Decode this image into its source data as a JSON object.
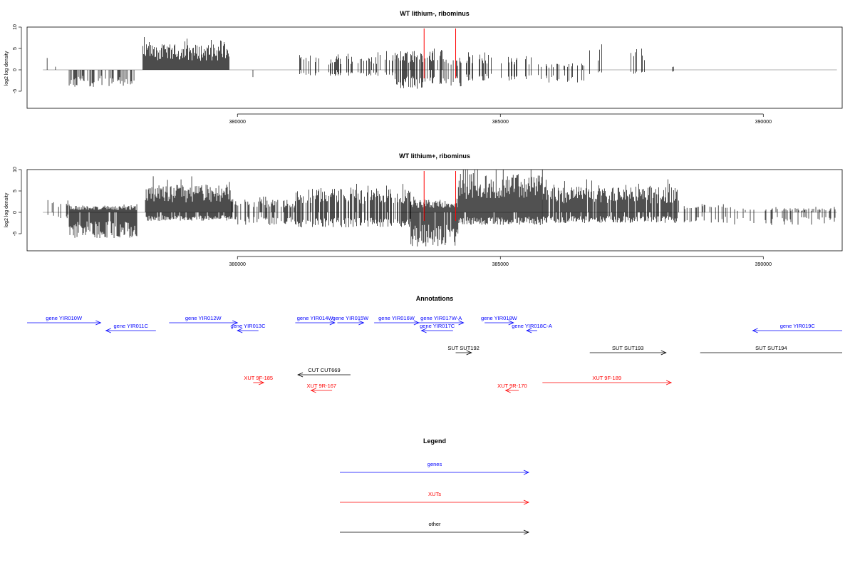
{
  "colors": {
    "gene": "#0000ff",
    "xut": "#ff0000",
    "other": "#000000",
    "axis": "#000000",
    "baseline": "#999999",
    "marker": "#ff0000"
  },
  "chart_data": [
    {
      "type": "bar",
      "title": "WT lithium-, ribominus",
      "ylabel": "log2 log density",
      "xlabel": "",
      "x_range": [
        376000,
        391500
      ],
      "ylim": [
        -9,
        10
      ],
      "yticks": [
        "-5",
        "0",
        "5",
        "10"
      ],
      "xticks": [
        "380000",
        "385000",
        "390000"
      ],
      "markers_x": [
        383550,
        384150
      ],
      "segments": [
        {
          "start": 376300,
          "end": 376400,
          "pos": 3,
          "neg": 0,
          "density": 0.2
        },
        {
          "start": 376500,
          "end": 376550,
          "pos": 1,
          "neg": 0,
          "density": 0.2
        },
        {
          "start": 376800,
          "end": 378100,
          "pos": 0,
          "neg": 4,
          "density": 0.5
        },
        {
          "start": 378200,
          "end": 379850,
          "pos": 6,
          "neg": 0,
          "density": 1
        },
        {
          "start": 380200,
          "end": 380500,
          "pos": 0,
          "neg": 2.5,
          "density": 0.1
        },
        {
          "start": 380900,
          "end": 381050,
          "pos": 2,
          "neg": 1,
          "density": 0.1
        },
        {
          "start": 381100,
          "end": 383000,
          "pos": 3.5,
          "neg": 1.5,
          "density": 0.35
        },
        {
          "start": 383000,
          "end": 383900,
          "pos": 4.5,
          "neg": 4.5,
          "density": 0.6
        },
        {
          "start": 383900,
          "end": 384300,
          "pos": 2.5,
          "neg": 4,
          "density": 0.5
        },
        {
          "start": 384300,
          "end": 385600,
          "pos": 3.5,
          "neg": 2.5,
          "density": 0.3
        },
        {
          "start": 385600,
          "end": 386600,
          "pos": 1.5,
          "neg": 3,
          "density": 0.25
        },
        {
          "start": 386600,
          "end": 387800,
          "pos": 5,
          "neg": 1,
          "density": 0.1
        },
        {
          "start": 388200,
          "end": 388450,
          "pos": 1,
          "neg": 1,
          "density": 0.1
        }
      ]
    },
    {
      "type": "bar",
      "title": "WT lithium+, ribominus",
      "ylabel": "log2 log density",
      "xlabel": "",
      "x_range": [
        376000,
        391500
      ],
      "ylim": [
        -9,
        10
      ],
      "yticks": [
        "-5",
        "0",
        "5",
        "10"
      ],
      "xticks": [
        "380000",
        "385000",
        "390000"
      ],
      "markers_x": [
        383550,
        384150
      ],
      "segments": [
        {
          "start": 376300,
          "end": 376800,
          "pos": 3,
          "neg": 1.5,
          "density": 0.35
        },
        {
          "start": 376800,
          "end": 378100,
          "pos": 1.5,
          "neg": 6,
          "density": 1
        },
        {
          "start": 378250,
          "end": 379900,
          "pos": 6.5,
          "neg": 2,
          "density": 1
        },
        {
          "start": 379900,
          "end": 381100,
          "pos": 3,
          "neg": 3,
          "density": 0.45
        },
        {
          "start": 381100,
          "end": 383300,
          "pos": 5.5,
          "neg": 3.5,
          "density": 0.8
        },
        {
          "start": 383300,
          "end": 384200,
          "pos": 3,
          "neg": 8,
          "density": 1
        },
        {
          "start": 384200,
          "end": 385800,
          "pos": 9,
          "neg": 3,
          "density": 1
        },
        {
          "start": 385800,
          "end": 388400,
          "pos": 6,
          "neg": 2.5,
          "density": 0.9
        },
        {
          "start": 388400,
          "end": 389400,
          "pos": 2,
          "neg": 2.5,
          "density": 0.35
        },
        {
          "start": 389400,
          "end": 391400,
          "pos": 1,
          "neg": 3,
          "density": 0.25
        }
      ]
    }
  ],
  "annotations": {
    "title": "Annotations",
    "features": [
      {
        "label": "gene YIR010W",
        "type": "gene",
        "start": 376000,
        "end": 377400,
        "dir": "right",
        "row": 1
      },
      {
        "label": "gene YIR011C",
        "type": "gene",
        "start": 377500,
        "end": 378450,
        "dir": "left",
        "row": 2
      },
      {
        "label": "gene YIR012W",
        "type": "gene",
        "start": 378700,
        "end": 380000,
        "dir": "right",
        "row": 1
      },
      {
        "label": "gene YIR013C",
        "type": "gene",
        "start": 380000,
        "end": 380400,
        "dir": "left",
        "row": 2
      },
      {
        "label": "gene YIR014W",
        "type": "gene",
        "start": 381100,
        "end": 381850,
        "dir": "right",
        "row": 1
      },
      {
        "label": "gene YIR015W",
        "type": "gene",
        "start": 381900,
        "end": 382400,
        "dir": "right",
        "row": 1
      },
      {
        "label": "gene YIR016W",
        "type": "gene",
        "start": 382600,
        "end": 383450,
        "dir": "right",
        "row": 1
      },
      {
        "label": "gene YIR017W-A",
        "type": "gene",
        "start": 383450,
        "end": 384300,
        "dir": "right",
        "row": 1
      },
      {
        "label": "gene YIR017C",
        "type": "gene",
        "start": 383500,
        "end": 384100,
        "dir": "left",
        "row": 2
      },
      {
        "label": "gene YIR018W",
        "type": "gene",
        "start": 384700,
        "end": 385250,
        "dir": "right",
        "row": 1
      },
      {
        "label": "gene YIR018C-A",
        "type": "gene",
        "start": 385500,
        "end": 385700,
        "dir": "left",
        "row": 2
      },
      {
        "label": "gene YIR019C",
        "type": "gene",
        "start": 389800,
        "end": 391600,
        "dir": "left",
        "row": 2
      },
      {
        "label": "SUT SUT192",
        "type": "other",
        "start": 384150,
        "end": 384450,
        "dir": "right",
        "row": 3
      },
      {
        "label": "SUT SUT193",
        "type": "other",
        "start": 386700,
        "end": 388150,
        "dir": "right",
        "row": 3
      },
      {
        "label": "SUT SUT194",
        "type": "other",
        "start": 388800,
        "end": 391600,
        "dir": "right",
        "row": 3,
        "noarrow": true
      },
      {
        "label": "CUT CUT669",
        "type": "other",
        "start": 381150,
        "end": 382150,
        "dir": "left",
        "row": 4
      },
      {
        "label": "XUT 9F-185",
        "type": "xut",
        "start": 380300,
        "end": 380500,
        "dir": "right",
        "row": 5
      },
      {
        "label": "XUT 9R-167",
        "type": "xut",
        "start": 381400,
        "end": 381800,
        "dir": "left",
        "row": 6
      },
      {
        "label": "XUT 9R-170",
        "type": "xut",
        "start": 385100,
        "end": 385350,
        "dir": "left",
        "row": 6
      },
      {
        "label": "XUT 9F-189",
        "type": "xut",
        "start": 385800,
        "end": 388250,
        "dir": "right",
        "row": 5
      }
    ]
  },
  "legend": {
    "title": "Legend",
    "items": [
      {
        "label": "genes",
        "type": "gene"
      },
      {
        "label": "XUTs",
        "type": "xut"
      },
      {
        "label": "other",
        "type": "other"
      }
    ]
  }
}
